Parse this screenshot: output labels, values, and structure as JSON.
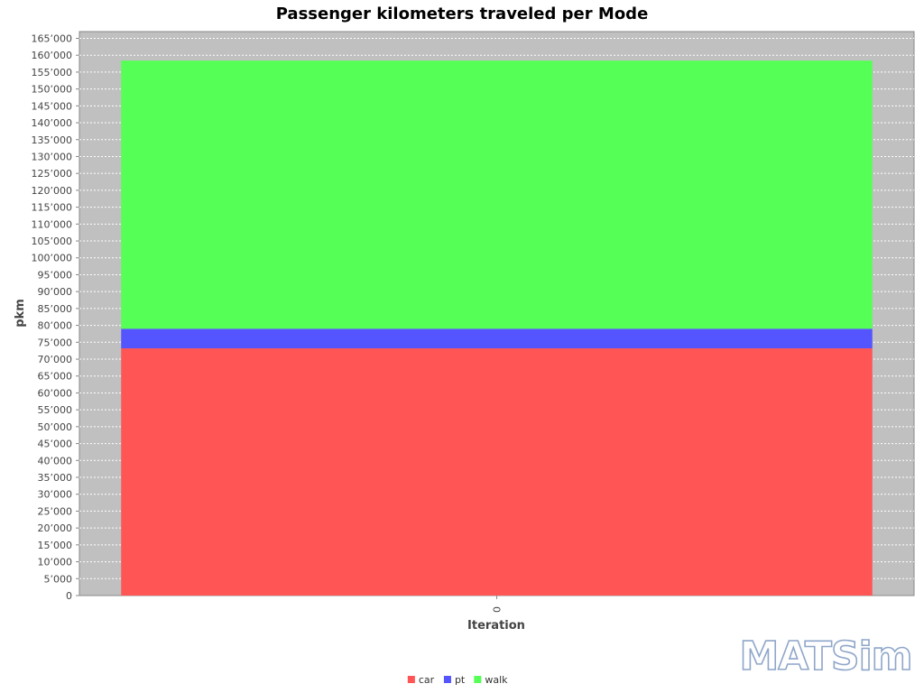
{
  "chart_data": {
    "type": "bar",
    "stacked": true,
    "title": "Passenger kilometers traveled per Mode",
    "xlabel": "Iteration",
    "ylabel": "pkm",
    "categories": [
      "0"
    ],
    "series": [
      {
        "name": "car",
        "values": [
          73200
        ],
        "color": "#ff5555"
      },
      {
        "name": "pt",
        "values": [
          5800
        ],
        "color": "#5555ff"
      },
      {
        "name": "walk",
        "values": [
          79400
        ],
        "color": "#55ff55"
      }
    ],
    "ylim": [
      0,
      167000
    ],
    "ytick_step": 5000,
    "ytick_labels": [
      "0",
      "5’000",
      "10’000",
      "15’000",
      "20’000",
      "25’000",
      "30’000",
      "35’000",
      "40’000",
      "45’000",
      "50’000",
      "55’000",
      "60’000",
      "65’000",
      "70’000",
      "75’000",
      "80’000",
      "85’000",
      "90’000",
      "95’000",
      "100’000",
      "105’000",
      "110’000",
      "115’000",
      "120’000",
      "125’000",
      "130’000",
      "135’000",
      "140’000",
      "145’000",
      "150’000",
      "155’000",
      "160’000",
      "165’000"
    ],
    "grid": true,
    "plot_background": "#c0c0c0",
    "legend_position": "bottom-center"
  },
  "logo": {
    "text": "MATSim"
  }
}
